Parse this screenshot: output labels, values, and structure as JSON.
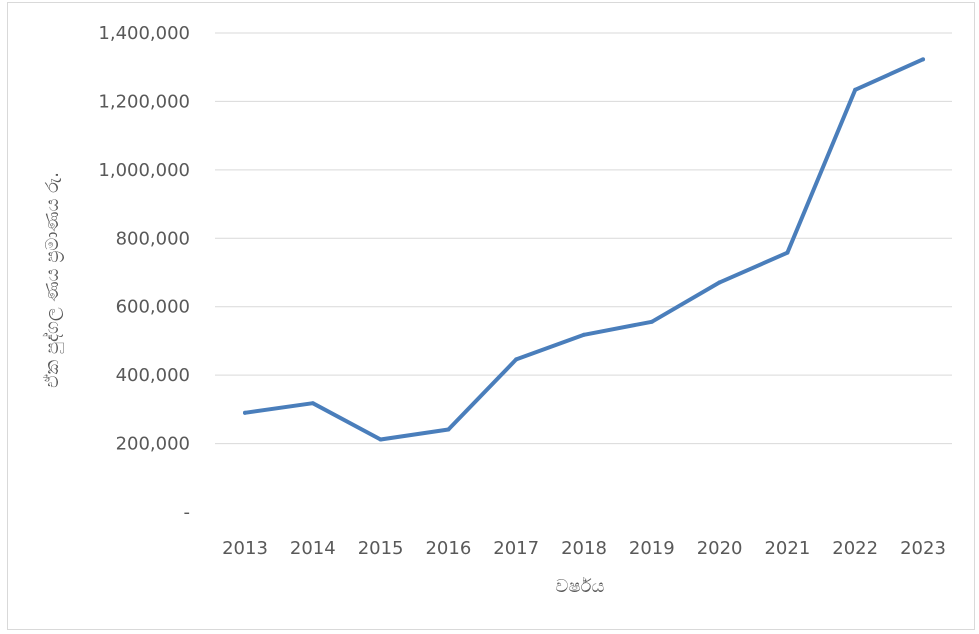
{
  "chart_data": {
    "type": "line",
    "title": "",
    "xlabel": "වර්ෂය",
    "ylabel": "ඒක පුද්ගල ණය ප්‍රමාණය රු.",
    "categories": [
      "2013",
      "2014",
      "2015",
      "2016",
      "2017",
      "2018",
      "2019",
      "2020",
      "2021",
      "2022",
      "2023"
    ],
    "series": [
      {
        "values": [
          290000,
          318000,
          212000,
          241000,
          446000,
          518000,
          556000,
          671000,
          758000,
          1234000,
          1323000
        ]
      }
    ],
    "ylim": [
      0,
      1400000
    ],
    "yticks": [
      0,
      200000,
      400000,
      600000,
      800000,
      1000000,
      1200000,
      1400000
    ],
    "ytick_labels": [
      "-",
      "200,000",
      "400,000",
      "600,000",
      "800,000",
      "1,000,000",
      "1,200,000",
      "1,400,000"
    ],
    "grid": true,
    "legend": "none",
    "colors": {
      "line": "#4a7ebb",
      "grid": "#d9d9d9",
      "text": "#595959"
    }
  }
}
